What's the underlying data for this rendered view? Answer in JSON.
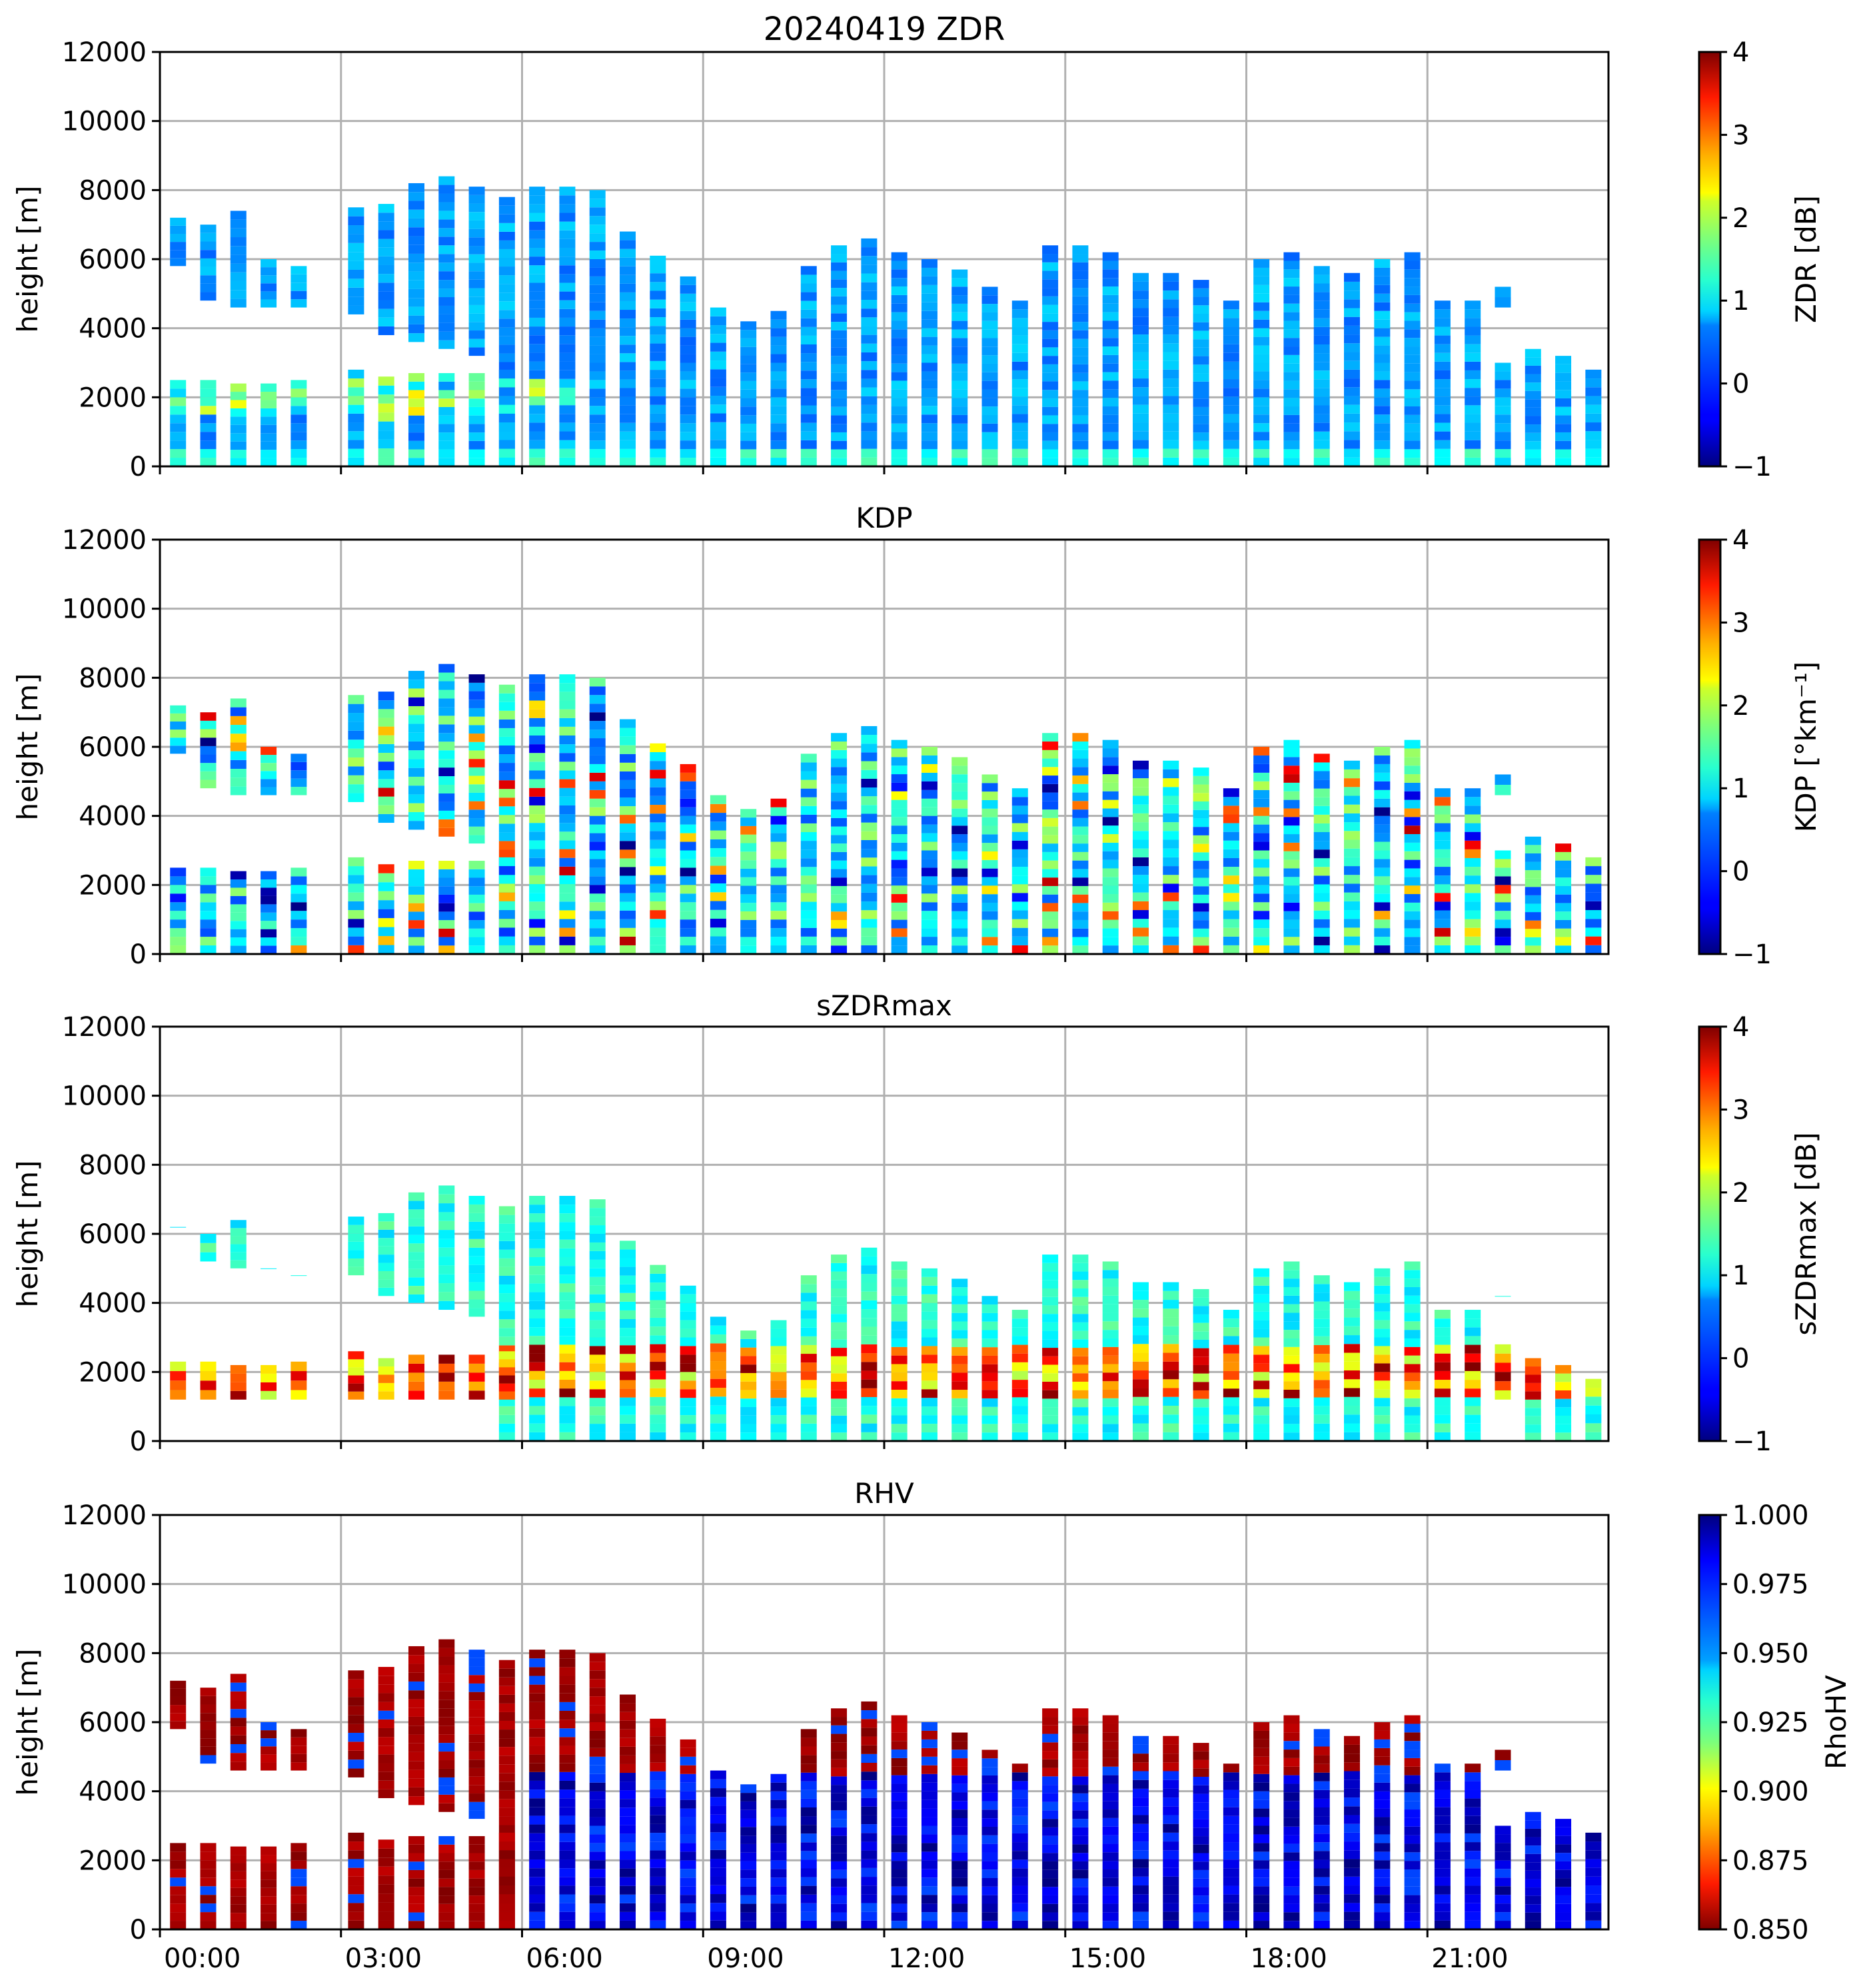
{
  "chart_data": [
    {
      "type": "heatmap",
      "title": "20240419 ZDR",
      "xlabel": "",
      "ylabel": "height [m]",
      "ylim": [
        0,
        12000
      ],
      "yticks": [
        "0",
        "2000",
        "4000",
        "6000",
        "8000",
        "10000",
        "12000"
      ],
      "grid": true,
      "colorbar": {
        "label": "ZDR [dB]",
        "range": [
          -1,
          4
        ],
        "ticks": [
          "−1",
          "0",
          "1",
          "2",
          "3",
          "4"
        ],
        "colormap": "jet"
      },
      "variable": "ZDR"
    },
    {
      "type": "heatmap",
      "title": "KDP",
      "xlabel": "",
      "ylabel": "height [m]",
      "ylim": [
        0,
        12000
      ],
      "yticks": [
        "0",
        "2000",
        "4000",
        "6000",
        "8000",
        "10000",
        "12000"
      ],
      "grid": true,
      "colorbar": {
        "label": "KDP [°km⁻¹]",
        "range": [
          -1,
          4
        ],
        "ticks": [
          "−1",
          "0",
          "1",
          "2",
          "3",
          "4"
        ],
        "colormap": "jet"
      },
      "variable": "KDP"
    },
    {
      "type": "heatmap",
      "title": "sZDRmax",
      "xlabel": "",
      "ylabel": "height [m]",
      "ylim": [
        0,
        12000
      ],
      "yticks": [
        "0",
        "2000",
        "4000",
        "6000",
        "8000",
        "10000",
        "12000"
      ],
      "grid": true,
      "colorbar": {
        "label": "sZDRmax [dB]",
        "range": [
          -1,
          4
        ],
        "ticks": [
          "−1",
          "0",
          "1",
          "2",
          "3",
          "4"
        ],
        "colormap": "jet"
      },
      "variable": "sZDRmax"
    },
    {
      "type": "heatmap",
      "title": "RHV",
      "xlabel": "",
      "ylabel": "height [m]",
      "ylim": [
        0,
        12000
      ],
      "yticks": [
        "0",
        "2000",
        "4000",
        "6000",
        "8000",
        "10000",
        "12000"
      ],
      "grid": true,
      "colorbar": {
        "label": "RhoHV",
        "range": [
          0.85,
          1.0
        ],
        "ticks": [
          "0.850",
          "0.875",
          "0.900",
          "0.925",
          "0.950",
          "0.975",
          "1.000"
        ],
        "colormap": "jet_r"
      },
      "variable": "RHV"
    }
  ],
  "x_axis": {
    "range_hours": [
      0,
      24
    ],
    "ticks": [
      "00:00",
      "03:00",
      "06:00",
      "09:00",
      "12:00",
      "15:00",
      "18:00",
      "21:00"
    ],
    "tick_hours": [
      0,
      3,
      6,
      9,
      12,
      15,
      18,
      21
    ]
  },
  "scan_columns": {
    "hours": [
      0.3,
      0.8,
      1.3,
      1.8,
      2.3,
      3.25,
      3.75,
      4.25,
      4.75,
      5.25,
      5.75,
      6.25,
      6.75,
      7.25,
      7.75,
      8.25,
      8.75,
      9.25,
      9.75,
      10.25,
      10.75,
      11.25,
      11.75,
      12.25,
      12.75,
      13.25,
      13.75,
      14.25,
      14.75,
      15.25,
      15.75,
      16.25,
      16.75,
      17.25,
      17.75,
      18.25,
      18.75,
      19.25,
      19.75,
      20.25,
      20.75,
      21.25,
      21.75,
      22.25,
      22.75,
      23.25,
      23.75
    ],
    "upper_top_m": [
      7200,
      7000,
      7400,
      6000,
      5800,
      7500,
      7600,
      8200,
      8400,
      8100,
      7800,
      8100,
      8100,
      8000,
      6800,
      6100,
      5500,
      4600,
      4200,
      4500,
      5800,
      6400,
      6600,
      6200,
      6000,
      5700,
      5200,
      4800,
      6400,
      6400,
      6200,
      5600,
      5600,
      5400,
      4800,
      6000,
      6200,
      5800,
      5600,
      6000,
      6200,
      4800,
      4800,
      5200,
      3400,
      3200,
      2800
    ],
    "upper_base_m": [
      5800,
      4800,
      4600,
      4600,
      4600,
      4400,
      3800,
      3600,
      3400,
      3200,
      0,
      0,
      0,
      0,
      0,
      0,
      0,
      0,
      0,
      0,
      0,
      0,
      0,
      0,
      0,
      0,
      0,
      0,
      0,
      0,
      0,
      0,
      0,
      0,
      0,
      0,
      0,
      0,
      0,
      0,
      0,
      0,
      0,
      4600,
      0,
      0,
      0
    ],
    "lower_top_m": [
      2500,
      2500,
      2400,
      2400,
      2500,
      2800,
      2600,
      2700,
      2700,
      2700,
      2800,
      0,
      0,
      0,
      0,
      0,
      0,
      0,
      0,
      0,
      0,
      0,
      0,
      0,
      0,
      0,
      0,
      0,
      0,
      0,
      0,
      0,
      0,
      0,
      0,
      0,
      0,
      0,
      0,
      0,
      0,
      0,
      0,
      3000,
      0,
      0,
      0
    ]
  }
}
